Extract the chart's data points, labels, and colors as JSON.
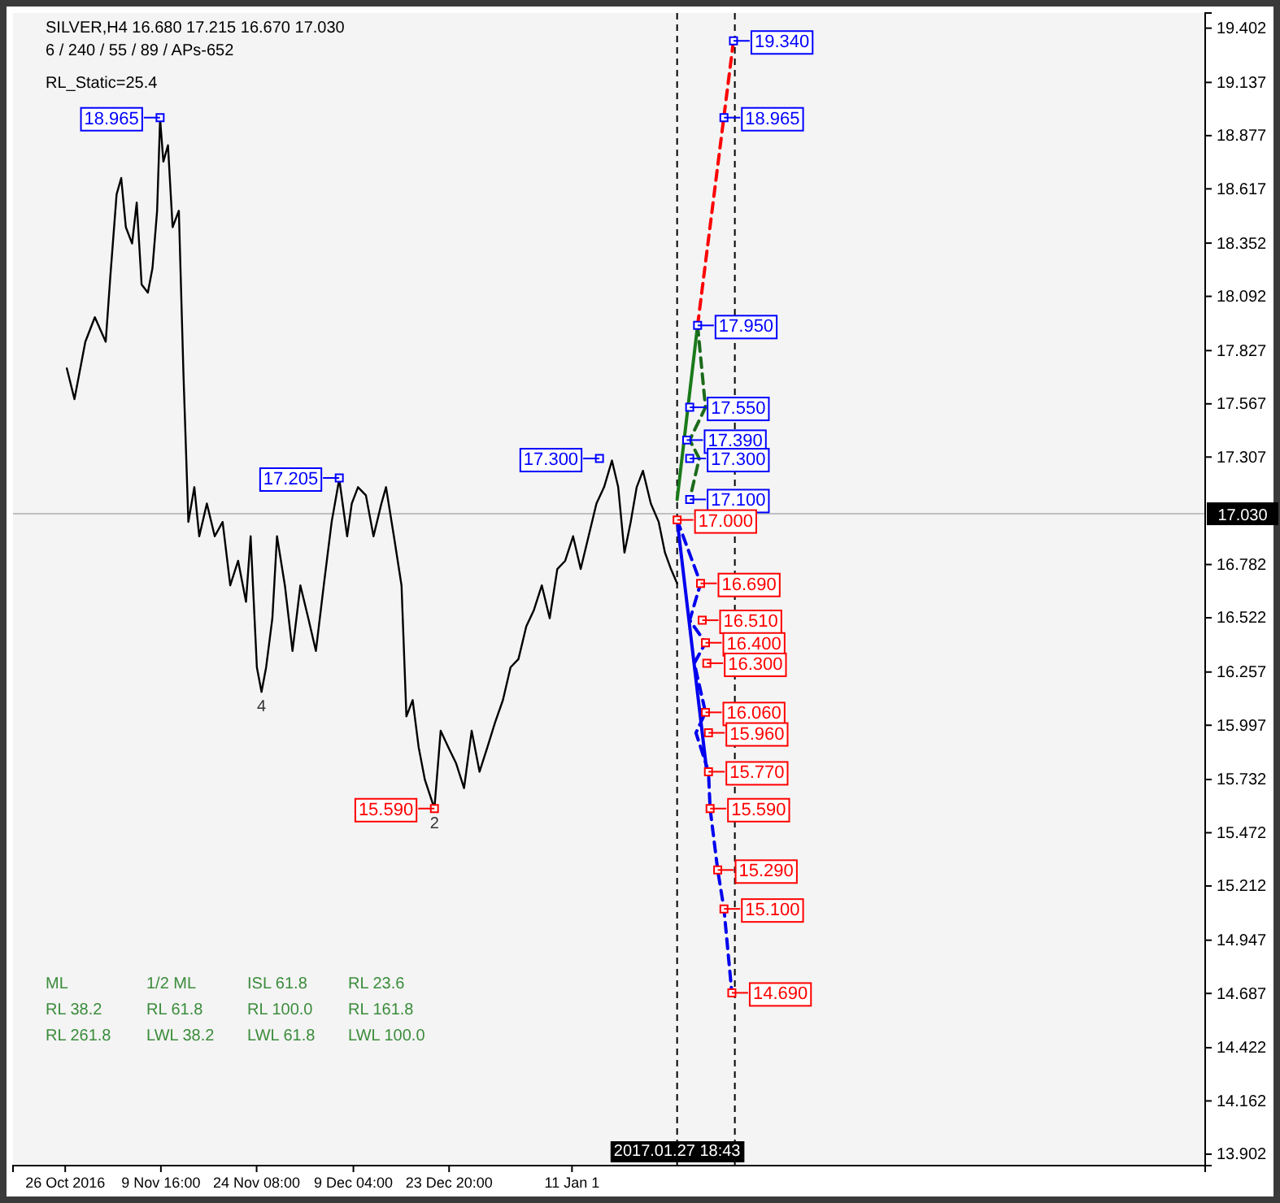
{
  "chart_data": {
    "type": "line",
    "title": "SILVER,H4  16.680 17.215 16.670 17.030",
    "subtitle": "6 / 240 / 55 / 89 / APs-652",
    "xlim": [
      "2016-10-18T00:00",
      "2017-04-18T17:00"
    ],
    "ylim": [
      13.846,
      19.476
    ],
    "xticks": [
      {
        "value": "2016-10-26",
        "label": "26 Oct 2016"
      },
      {
        "value": "2016-11-09T16:00",
        "label": "9 Nov 16:00"
      },
      {
        "value": "2016-11-24T08:00",
        "label": "24 Nov 08:00"
      },
      {
        "value": "2016-12-09T04:00",
        "label": "9 Dec 04:00"
      },
      {
        "value": "2016-12-23T20:00",
        "label": "23 Dec 20:00"
      },
      {
        "value": "2017-01-11T16:00",
        "label": "11 Jan 1"
      }
    ],
    "yticks": [
      19.402,
      19.137,
      18.877,
      18.617,
      18.352,
      18.092,
      17.827,
      17.567,
      17.307,
      16.782,
      16.522,
      16.257,
      15.997,
      15.732,
      15.472,
      15.212,
      14.947,
      14.687,
      14.422,
      14.162,
      13.902
    ],
    "grid": false,
    "series": [
      {
        "color": "#000000",
        "x": [
          "2016-10-26T06:00",
          "2016-10-27T10:00",
          "2016-10-29T02:00",
          "2016-10-30T13:00",
          "2016-11-01T05:00",
          "2016-11-01T22:00",
          "2016-11-02T21:00",
          "2016-11-03T14:00",
          "2016-11-04T07:00",
          "2016-11-05T06:00",
          "2016-11-05T23:00",
          "2016-11-06T17:00",
          "2016-11-07T16:00",
          "2016-11-08T09:00",
          "2016-11-09T02:00",
          "2016-11-09T13:00",
          "2016-11-10T01:00",
          "2016-11-10T18:00",
          "2016-11-11T11:00",
          "2016-11-12T10:00",
          "2016-11-13T03:00",
          "2016-11-13T21:00",
          "2016-11-14T19:00",
          "2016-11-15T13:00",
          "2016-11-16T17:00",
          "2016-11-17T22:00",
          "2016-11-19T03:00",
          "2016-11-20T07:00",
          "2016-11-21T12:00",
          "2016-11-22T17:00",
          "2016-11-23T10:00",
          "2016-11-24T09:00",
          "2016-11-25T02:00",
          "2016-11-25T19:00",
          "2016-11-26T18:00",
          "2016-11-27T11:00",
          "2016-11-28T16:00",
          "2016-11-29T20:00",
          "2016-12-01T01:00",
          "2016-12-02T06:00",
          "2016-12-03T10:00",
          "2016-12-04T15:00",
          "2016-12-05T20:00",
          "2016-12-07T00:00",
          "2016-12-08T05:00",
          "2016-12-08T22:00",
          "2016-12-09T21:00",
          "2016-12-11T02:00",
          "2016-12-12T06:00",
          "2016-12-13T11:00",
          "2016-12-14T04:00",
          "2016-12-15T09:00",
          "2016-12-16T13:00",
          "2016-12-17T07:00",
          "2016-12-18T06:00",
          "2016-12-19T04:00",
          "2016-12-20T03:00",
          "2016-12-21T14:00",
          "2016-12-22T13:00",
          "2016-12-23T17:00",
          "2016-12-24T22:00",
          "2016-12-26T03:00",
          "2016-12-27T07:00",
          "2016-12-28T12:00",
          "2016-12-29T17:00",
          "2016-12-30T21:00",
          "2017-01-01T02:00",
          "2017-01-02T06:00",
          "2017-01-03T11:00",
          "2017-01-04T16:00",
          "2017-01-05T20:00",
          "2017-01-07T01:00",
          "2017-01-08T06:00",
          "2017-01-09T10:00",
          "2017-01-10T15:00",
          "2017-01-11T20:00",
          "2017-01-13T00:00",
          "2017-01-14T05:00",
          "2017-01-15T10:00",
          "2017-01-16T14:00",
          "2017-01-17T19:00",
          "2017-01-18T18:00",
          "2017-01-19T17:00",
          "2017-01-20T16:00",
          "2017-01-21T14:00",
          "2017-01-22T13:00",
          "2017-01-23T18:00",
          "2017-01-24T23:00",
          "2017-01-25T22:00",
          "2017-01-26T20:00",
          "2017-01-27T18:43"
        ],
        "values": [
          17.74,
          17.59,
          17.87,
          17.99,
          17.87,
          18.19,
          18.59,
          18.67,
          18.43,
          18.35,
          18.55,
          18.15,
          18.11,
          18.23,
          18.51,
          18.96,
          18.75,
          18.83,
          18.43,
          18.51,
          17.71,
          16.99,
          17.16,
          16.92,
          17.08,
          16.92,
          16.99,
          16.68,
          16.8,
          16.6,
          16.92,
          16.28,
          16.16,
          16.28,
          16.52,
          16.92,
          16.68,
          16.36,
          16.68,
          16.52,
          16.36,
          16.68,
          16.99,
          17.2,
          16.92,
          17.08,
          17.16,
          17.12,
          16.92,
          17.08,
          17.16,
          16.92,
          16.68,
          16.04,
          16.12,
          15.89,
          15.73,
          15.59,
          15.97,
          15.89,
          15.81,
          15.69,
          15.97,
          15.77,
          15.89,
          16.01,
          16.12,
          16.28,
          16.32,
          16.48,
          16.56,
          16.68,
          16.52,
          16.76,
          16.8,
          16.92,
          16.76,
          16.92,
          17.08,
          17.16,
          17.29,
          17.16,
          16.84,
          16.99,
          17.16,
          17.24,
          17.08,
          16.99,
          16.84,
          16.76,
          16.69
        ]
      },
      {
        "color": "#1a7a1a",
        "line_style": "solid",
        "x": [
          "2017-01-27T18:43",
          "2017-01-30T22:00"
        ],
        "values": [
          17.1,
          17.95
        ]
      },
      {
        "color": "#1a6a1a",
        "line_style": "dashed",
        "x": [
          "2017-01-30T22:00",
          "2017-02-01T03:00",
          "2017-01-29T17:00",
          "2017-01-31T04:00",
          "2017-01-29T17:00"
        ],
        "values": [
          17.95,
          17.55,
          17.39,
          17.3,
          17.1
        ]
      },
      {
        "color": "#ff0000",
        "line_style": "dashed",
        "x": [
          "2017-01-30T22:00",
          "2017-02-05T10:00"
        ],
        "values": [
          17.95,
          19.34
        ]
      },
      {
        "color": "#0000ee",
        "line_style": "solid",
        "x": [
          "2017-01-27T18:43",
          "2017-02-01T08:00"
        ],
        "values": [
          17.0,
          15.77
        ]
      },
      {
        "color": "#0000ee",
        "line_style": "dashed",
        "x": [
          "2017-01-27T18:43",
          "2017-01-31T09:00",
          "2017-01-29T17:00",
          "2017-02-01T03:00",
          "2017-01-30T10:00",
          "2017-02-01T03:00",
          "2017-01-30T16:00",
          "2017-02-01T14:00",
          "2017-02-01T20:00",
          "2017-02-03T00:00",
          "2017-02-03T23:00",
          "2017-02-05T04:00"
        ],
        "values": [
          17.0,
          16.69,
          16.51,
          16.4,
          16.3,
          16.06,
          15.96,
          15.77,
          15.59,
          15.29,
          15.1,
          14.69
        ]
      },
      {
        "type": "scatter",
        "color": "#0000ff",
        "marker": "square",
        "x": [
          "2016-11-09T13:00",
          "2016-12-07T00:00",
          "2017-01-15T21:00",
          "2017-02-05T10:00",
          "2017-02-03T23:00",
          "2017-01-30T22:00",
          "2017-01-29T17:00",
          "2017-01-29T06:00",
          "2017-01-29T17:00",
          "2017-01-29T17:00"
        ],
        "values": [
          18.965,
          17.205,
          17.3,
          19.34,
          18.965,
          17.95,
          17.55,
          17.39,
          17.3,
          17.1
        ],
        "value_labels": [
          "18.965",
          "17.205",
          "17.300",
          "19.340",
          "18.965",
          "17.950",
          "17.550",
          "17.390",
          "17.300",
          "17.100"
        ]
      },
      {
        "type": "scatter",
        "color": "#ff0000",
        "marker": "square",
        "x": [
          "2016-12-21T14:00",
          "2017-01-27T18:43",
          "2017-01-31T09:00",
          "2017-01-31T15:00",
          "2017-02-01T03:00",
          "2017-02-01T08:00",
          "2017-02-01T03:00",
          "2017-02-01T14:00",
          "2017-02-01T14:00",
          "2017-02-01T20:00",
          "2017-02-03T00:00",
          "2017-02-03T23:00",
          "2017-02-05T04:00"
        ],
        "values": [
          15.59,
          17.0,
          16.69,
          16.51,
          16.4,
          16.3,
          16.06,
          15.96,
          15.77,
          15.59,
          15.29,
          15.1,
          14.69
        ],
        "value_labels": [
          "15.590",
          "17.000",
          "16.690",
          "16.510",
          "16.400",
          "16.300",
          "16.060",
          "15.960",
          "15.770",
          "15.590",
          "15.290",
          "15.100",
          "14.690"
        ]
      }
    ],
    "ref_lines": [
      {
        "axis": "y",
        "value": 17.03,
        "label": "17.030",
        "color": "#c0c0c0"
      },
      {
        "axis": "x",
        "value": "2017-01-27T18:43",
        "label": "2017.01.27 18:43",
        "color": "#000000",
        "line_style": "dashed"
      },
      {
        "axis": "x",
        "value": "2017-02-05T15:00",
        "color": "#000000",
        "line_style": "dashed"
      }
    ],
    "annotations": [
      "RL_Static=25.4",
      "ML",
      "1/2 ML",
      "ISL 61.8",
      "RL 23.6",
      "RL 38.2",
      "RL 61.8",
      "RL 100.0",
      "RL 161.8",
      "RL 261.8",
      "LWL 38.2",
      "LWL 61.8",
      "LWL 100.0",
      {
        "text": "4",
        "x": "2016-11-25T02:00",
        "y": 16.16
      },
      {
        "text": "2",
        "x": "2016-12-21T14:00",
        "y": 15.59
      }
    ]
  }
}
